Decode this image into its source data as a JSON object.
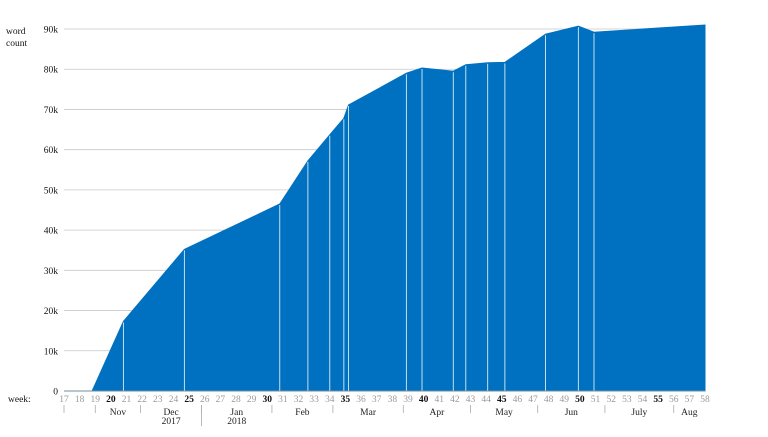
{
  "chart_data": {
    "type": "area",
    "ylabel_line1": "word",
    "ylabel_line2": "count",
    "xlabel": "week:",
    "ylim": [
      0,
      90000
    ],
    "y_ticks": [
      {
        "value": 0,
        "label": "0"
      },
      {
        "value": 10000,
        "label": "10k"
      },
      {
        "value": 20000,
        "label": "20k"
      },
      {
        "value": 30000,
        "label": "30k"
      },
      {
        "value": 40000,
        "label": "40k"
      },
      {
        "value": 50000,
        "label": "50k"
      },
      {
        "value": 60000,
        "label": "60k"
      },
      {
        "value": 70000,
        "label": "70k"
      },
      {
        "value": 80000,
        "label": "80k"
      },
      {
        "value": 90000,
        "label": "90k"
      }
    ],
    "x_range": [
      17,
      58
    ],
    "weeks": [
      {
        "w": 17,
        "label": "17",
        "bold": false
      },
      {
        "w": 18,
        "label": "18",
        "bold": false
      },
      {
        "w": 19,
        "label": "19",
        "bold": false
      },
      {
        "w": 20,
        "label": "20",
        "bold": true
      },
      {
        "w": 21,
        "label": "21",
        "bold": false
      },
      {
        "w": 22,
        "label": "22",
        "bold": false
      },
      {
        "w": 23,
        "label": "23",
        "bold": false
      },
      {
        "w": 24,
        "label": "24",
        "bold": false
      },
      {
        "w": 25,
        "label": "25",
        "bold": true
      },
      {
        "w": 26,
        "label": "26",
        "bold": false
      },
      {
        "w": 27,
        "label": "27",
        "bold": false
      },
      {
        "w": 28,
        "label": "28",
        "bold": false
      },
      {
        "w": 29,
        "label": "29",
        "bold": false
      },
      {
        "w": 30,
        "label": "30",
        "bold": true
      },
      {
        "w": 31,
        "label": "31",
        "bold": false
      },
      {
        "w": 32,
        "label": "32",
        "bold": false
      },
      {
        "w": 33,
        "label": "33",
        "bold": false
      },
      {
        "w": 34,
        "label": "34",
        "bold": false
      },
      {
        "w": 35,
        "label": "35",
        "bold": true
      },
      {
        "w": 36,
        "label": "36",
        "bold": false
      },
      {
        "w": 37,
        "label": "37",
        "bold": false
      },
      {
        "w": 38,
        "label": "38",
        "bold": false
      },
      {
        "w": 39,
        "label": "39",
        "bold": false
      },
      {
        "w": 40,
        "label": "40",
        "bold": true
      },
      {
        "w": 41,
        "label": "41",
        "bold": false
      },
      {
        "w": 42,
        "label": "42",
        "bold": false
      },
      {
        "w": 43,
        "label": "43",
        "bold": false
      },
      {
        "w": 44,
        "label": "44",
        "bold": false
      },
      {
        "w": 45,
        "label": "45",
        "bold": true
      },
      {
        "w": 46,
        "label": "46",
        "bold": false
      },
      {
        "w": 47,
        "label": "47",
        "bold": false
      },
      {
        "w": 48,
        "label": "48",
        "bold": false
      },
      {
        "w": 49,
        "label": "49",
        "bold": false
      },
      {
        "w": 50,
        "label": "50",
        "bold": true
      },
      {
        "w": 51,
        "label": "51",
        "bold": false
      },
      {
        "w": 52,
        "label": "52",
        "bold": false
      },
      {
        "w": 53,
        "label": "53",
        "bold": false
      },
      {
        "w": 54,
        "label": "54",
        "bold": false
      },
      {
        "w": 55,
        "label": "55",
        "bold": true
      },
      {
        "w": 56,
        "label": "56",
        "bold": false
      },
      {
        "w": 57,
        "label": "57",
        "bold": false
      },
      {
        "w": 58,
        "label": "58",
        "bold": false
      }
    ],
    "months": [
      {
        "label": "Nov",
        "start": 19,
        "end": 21.9
      },
      {
        "label": "Dec",
        "start": 21.9,
        "end": 25.8
      },
      {
        "label": "Jan",
        "start": 25.8,
        "end": 30.3
      },
      {
        "label": "Feb",
        "start": 30.3,
        "end": 34.2
      },
      {
        "label": "Mar",
        "start": 34.2,
        "end": 38.7
      },
      {
        "label": "Apr",
        "start": 38.7,
        "end": 43.0
      },
      {
        "label": "May",
        "start": 43.0,
        "end": 47.3
      },
      {
        "label": "Jun",
        "start": 47.3,
        "end": 51.6
      },
      {
        "label": "July",
        "start": 51.6,
        "end": 56.0
      },
      {
        "label": "Aug",
        "start": 56.0,
        "end": 58.0
      }
    ],
    "year_labels": [
      {
        "label": "2017",
        "month_index": 1
      },
      {
        "label": "2018",
        "month_index": 2
      }
    ],
    "color": "#0070c0",
    "series": [
      {
        "points": [
          {
            "x": 17,
            "y": 0
          },
          {
            "x": 18.8,
            "y": 0
          },
          {
            "x": 20.8,
            "y": 17300
          },
          {
            "x": 24.7,
            "y": 35200
          },
          {
            "x": 30.8,
            "y": 46500
          },
          {
            "x": 32.6,
            "y": 57200
          },
          {
            "x": 34.0,
            "y": 63700
          },
          {
            "x": 34.9,
            "y": 67800
          },
          {
            "x": 35.2,
            "y": 71100
          },
          {
            "x": 38.9,
            "y": 79000
          },
          {
            "x": 39.9,
            "y": 80300
          },
          {
            "x": 41.9,
            "y": 79500
          },
          {
            "x": 42.7,
            "y": 81100
          },
          {
            "x": 44.1,
            "y": 81600
          },
          {
            "x": 45.2,
            "y": 81700
          },
          {
            "x": 47.8,
            "y": 88700
          },
          {
            "x": 49.9,
            "y": 90700
          },
          {
            "x": 50.9,
            "y": 89200
          },
          {
            "x": 58.0,
            "y": 91000
          }
        ]
      }
    ]
  }
}
